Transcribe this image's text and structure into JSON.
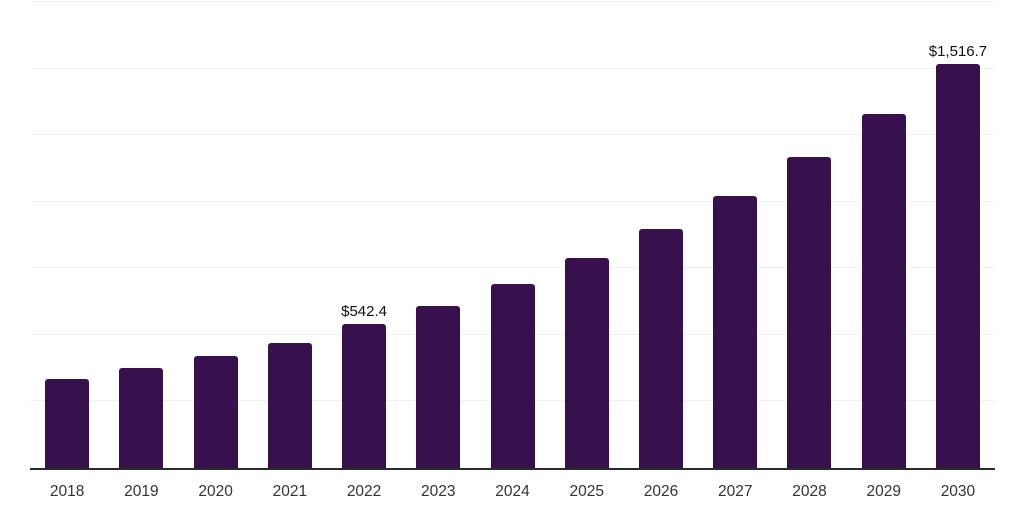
{
  "chart_data": {
    "type": "bar",
    "title": "",
    "xlabel": "",
    "ylabel": "",
    "categories": [
      "2018",
      "2019",
      "2020",
      "2021",
      "2022",
      "2023",
      "2024",
      "2025",
      "2026",
      "2027",
      "2028",
      "2029",
      "2030"
    ],
    "values": [
      334.2,
      375.5,
      420.6,
      469.4,
      542.4,
      608.4,
      690.9,
      788.6,
      897.5,
      1021.5,
      1167.9,
      1329.4,
      1516.7
    ],
    "data_labels": [
      "",
      "",
      "",
      "",
      "$542.4",
      "",
      "",
      "",
      "",
      "",
      "",
      "",
      "$1,516.7"
    ],
    "ylim": [
      0,
      1750
    ],
    "gridline_interval": 250,
    "grid": true,
    "legend": "none",
    "y_axis_labels_visible": false,
    "colors": {
      "bar": "#36114d",
      "axis_line": "#2b2b2b",
      "gridline": "#f0f0f3",
      "tick_label": "#333333",
      "data_label": "#111111",
      "background": "#ffffff"
    }
  }
}
